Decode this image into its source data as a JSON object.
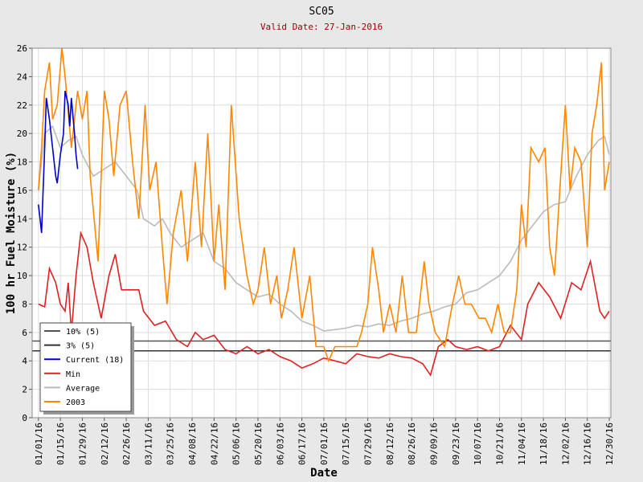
{
  "chart_data": {
    "type": "line",
    "title": "SC05",
    "subtitle": "Valid Date: 27-Jan-2016",
    "x_label": "Date",
    "y_label": "100 hr Fuel Moisture (%)",
    "xlim": [
      "12/28/15",
      "12/31/16"
    ],
    "ylim": [
      0,
      26
    ],
    "yticks": [
      0,
      2,
      4,
      6,
      8,
      10,
      12,
      14,
      16,
      18,
      20,
      22,
      24,
      26
    ],
    "xticks": [
      "01/01/16",
      "01/15/16",
      "01/29/16",
      "02/12/16",
      "02/26/16",
      "03/11/16",
      "03/25/16",
      "04/08/16",
      "04/22/16",
      "05/06/16",
      "05/20/16",
      "06/03/16",
      "06/17/16",
      "07/01/16",
      "07/15/16",
      "07/29/16",
      "08/12/16",
      "08/26/16",
      "09/09/16",
      "09/23/16",
      "10/07/16",
      "10/21/16",
      "11/04/16",
      "11/18/16",
      "12/02/16",
      "12/16/16",
      "12/30/16"
    ],
    "grid": true,
    "legend": "lower left",
    "series": [
      {
        "name": "10% (5)",
        "color": "#555555",
        "x": [
          "12/28/15",
          "12/31/16"
        ],
        "values": [
          5.4,
          5.4
        ]
      },
      {
        "name": "3% (5)",
        "color": "#333333",
        "x": [
          "12/28/15",
          "12/31/16"
        ],
        "values": [
          4.7,
          4.7
        ]
      },
      {
        "name": "Current (18)",
        "color": "#0000cc",
        "x": [
          "01/01/16",
          "01/02/16",
          "01/03/16",
          "01/05/16",
          "01/06/16",
          "01/08/16",
          "01/10/16",
          "01/12/16",
          "01/13/16",
          "01/15/16",
          "01/17/16",
          "01/18/16",
          "01/20/16",
          "01/21/16",
          "01/22/16",
          "01/24/16",
          "01/25/16",
          "01/26/16"
        ],
        "values": [
          15,
          14,
          13,
          19,
          22.5,
          21,
          19,
          17,
          16.5,
          18.5,
          20,
          23,
          22,
          20.5,
          22.5,
          20,
          18.5,
          17.5
        ]
      },
      {
        "name": "Min",
        "color": "#dd2222",
        "x": [
          "01/01/16",
          "01/05/16",
          "01/08/16",
          "01/12/16",
          "01/15/16",
          "01/18/16",
          "01/20/16",
          "01/22/16",
          "01/25/16",
          "01/28/16",
          "02/01/16",
          "02/05/16",
          "02/10/16",
          "02/15/16",
          "02/19/16",
          "02/23/16",
          "03/01/16",
          "03/05/16",
          "03/08/16",
          "03/15/16",
          "03/22/16",
          "03/29/16",
          "04/05/16",
          "04/10/16",
          "04/15/16",
          "04/22/16",
          "04/29/16",
          "05/06/16",
          "05/13/16",
          "05/20/16",
          "05/27/16",
          "06/03/16",
          "06/10/16",
          "06/17/16",
          "06/24/16",
          "07/01/16",
          "07/08/16",
          "07/15/16",
          "07/22/16",
          "07/29/16",
          "08/05/16",
          "08/12/16",
          "08/19/16",
          "08/26/16",
          "09/02/16",
          "09/07/16",
          "09/12/16",
          "09/18/16",
          "09/23/16",
          "09/30/16",
          "10/07/16",
          "10/14/16",
          "10/21/16",
          "10/28/16",
          "11/04/16",
          "11/08/16",
          "11/15/16",
          "11/22/16",
          "11/29/16",
          "12/06/16",
          "12/12/16",
          "12/18/16",
          "12/24/16",
          "12/27/16",
          "12/30/16"
        ],
        "values": [
          8,
          7.8,
          10.5,
          9.5,
          8,
          7.5,
          9.5,
          6,
          10,
          13,
          12,
          9.5,
          7,
          10,
          11.5,
          9,
          9,
          9,
          7.5,
          6.5,
          6.8,
          5.5,
          5,
          6,
          5.5,
          5.8,
          4.8,
          4.5,
          5,
          4.5,
          4.8,
          4.3,
          4,
          3.5,
          3.8,
          4.2,
          4,
          3.8,
          4.5,
          4.3,
          4.2,
          4.5,
          4.3,
          4.2,
          3.8,
          3,
          5,
          5.5,
          5,
          4.8,
          5,
          4.7,
          5,
          6.5,
          5.5,
          8,
          9.5,
          8.5,
          7,
          9.5,
          9,
          11,
          7.5,
          7,
          7.5
        ]
      },
      {
        "name": "Average",
        "color": "#bbbbbb",
        "x": [
          "01/01/16",
          "01/05/16",
          "01/10/16",
          "01/15/16",
          "01/20/16",
          "01/25/16",
          "01/29/16",
          "02/05/16",
          "02/12/16",
          "02/19/16",
          "02/26/16",
          "03/04/16",
          "03/08/16",
          "03/15/16",
          "03/20/16",
          "03/25/16",
          "04/01/16",
          "04/08/16",
          "04/15/16",
          "04/22/16",
          "04/29/16",
          "05/06/16",
          "05/13/16",
          "05/20/16",
          "05/27/16",
          "06/03/16",
          "06/10/16",
          "06/17/16",
          "06/24/16",
          "07/01/16",
          "07/08/16",
          "07/15/16",
          "07/22/16",
          "07/29/16",
          "08/05/16",
          "08/12/16",
          "08/19/16",
          "08/26/16",
          "09/02/16",
          "09/09/16",
          "09/16/16",
          "09/23/16",
          "09/30/16",
          "10/07/16",
          "10/14/16",
          "10/21/16",
          "10/28/16",
          "11/04/16",
          "11/11/16",
          "11/18/16",
          "11/25/16",
          "12/02/16",
          "12/09/16",
          "12/16/16",
          "12/23/16",
          "12/27/16",
          "12/30/16"
        ],
        "values": [
          16,
          20,
          20.5,
          19,
          19.5,
          19.8,
          18.5,
          17,
          17.5,
          18,
          17,
          16,
          14,
          13.5,
          14,
          13,
          12,
          12.5,
          13,
          11,
          10.5,
          9.5,
          9,
          8.5,
          8.7,
          8,
          7.5,
          6.8,
          6.5,
          6.1,
          6.2,
          6.3,
          6.5,
          6.4,
          6.6,
          6.5,
          6.8,
          7,
          7.3,
          7.5,
          7.8,
          8,
          8.8,
          9,
          9.5,
          10,
          11,
          12.5,
          13.5,
          14.5,
          15,
          15.2,
          17,
          18.5,
          19.5,
          19.8,
          18.5
        ]
      },
      {
        "name": "2003",
        "color": "#ff8800",
        "x": [
          "01/01/16",
          "01/03/16",
          "01/05/16",
          "01/08/16",
          "01/10/16",
          "01/13/16",
          "01/16/16",
          "01/18/16",
          "01/22/16",
          "01/26/16",
          "01/29/16",
          "02/01/16",
          "02/03/16",
          "02/08/16",
          "02/12/16",
          "02/15/16",
          "02/18/16",
          "02/22/16",
          "02/26/16",
          "03/01/16",
          "03/05/16",
          "03/09/16",
          "03/12/16",
          "03/16/16",
          "03/20/16",
          "03/23/16",
          "03/27/16",
          "04/01/16",
          "04/05/16",
          "04/10/16",
          "04/14/16",
          "04/18/16",
          "04/22/16",
          "04/25/16",
          "04/29/16",
          "05/03/16",
          "05/08/16",
          "05/13/16",
          "05/17/16",
          "05/20/16",
          "05/24/16",
          "05/28/16",
          "06/01/16",
          "06/04/16",
          "06/08/16",
          "06/12/16",
          "06/17/16",
          "06/22/16",
          "06/26/16",
          "07/01/16",
          "07/04/16",
          "07/08/16",
          "07/15/16",
          "07/22/16",
          "07/25/16",
          "07/29/16",
          "08/01/16",
          "08/05/16",
          "08/08/16",
          "08/12/16",
          "08/16/16",
          "08/20/16",
          "08/24/16",
          "08/29/16",
          "09/03/16",
          "09/06/16",
          "09/10/16",
          "09/16/16",
          "09/21/16",
          "09/25/16",
          "09/29/16",
          "10/03/16",
          "10/08/16",
          "10/12/16",
          "10/16/16",
          "10/20/16",
          "10/24/16",
          "10/28/16",
          "11/01/16",
          "11/04/16",
          "11/07/16",
          "11/10/16",
          "11/15/16",
          "11/19/16",
          "11/22/16",
          "11/25/16",
          "11/29/16",
          "12/02/16",
          "12/05/16",
          "12/08/16",
          "12/12/16",
          "12/16/16",
          "12/19/16",
          "12/22/16",
          "12/25/16",
          "12/27/16",
          "12/30/16"
        ],
        "values": [
          16,
          19,
          23,
          25,
          21,
          22,
          26,
          24,
          19,
          23,
          21,
          23,
          17,
          11,
          23,
          21,
          17,
          22,
          23,
          18,
          14,
          22,
          16,
          18,
          12,
          8,
          13,
          16,
          11,
          18,
          12,
          20,
          11,
          15,
          9,
          22,
          14,
          10,
          8,
          9,
          12,
          8,
          10,
          7,
          9,
          12,
          7,
          10,
          5,
          5,
          4,
          5,
          5,
          5,
          6,
          8,
          12,
          9,
          6,
          8,
          6,
          10,
          6,
          6,
          11,
          8,
          6,
          5,
          8,
          10,
          8,
          8,
          7,
          7,
          6,
          8,
          6,
          6,
          9,
          15,
          12,
          19,
          18,
          19,
          12,
          10,
          17,
          22,
          16,
          19,
          18,
          12,
          20,
          22,
          25,
          16,
          18
        ]
      }
    ]
  }
}
